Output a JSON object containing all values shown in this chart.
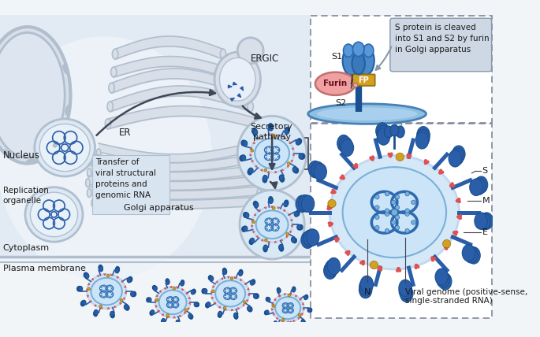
{
  "bg_color": "#f2f5f8",
  "cyto_color": "#e2eaf4",
  "white": "#ffffff",
  "blue_dark": "#1a5090",
  "blue_med": "#2e6ab0",
  "blue_spike": "#2a5ea8",
  "blue_light": "#7ab0d8",
  "blue_pale": "#b8d8f0",
  "blue_very_pale": "#cce4f8",
  "blue_cell": "#d4e8f8",
  "blue_cell2": "#c0d8f0",
  "gray_struct": "#c4ceda",
  "gray_struct2": "#b0bece",
  "gray_struct3": "#d8dfe8",
  "red_protein": "#e05050",
  "orange_protein": "#d4a020",
  "pink_furin": "#f0a0a0",
  "text_color": "#1a1a1a",
  "arrow_color": "#404858",
  "label_nucleus": "Nucleus",
  "label_ER": "ER",
  "label_ERGIC": "ERGIC",
  "label_Golgi": "Golgi apparatus",
  "label_replication": "Replication\norganelle",
  "label_transfer": "Transfer of\nviral structural\nproteins and\ngenomic RNA",
  "label_secretory": "Secretory\npathway",
  "label_cytoplasm": "Cytoplasm",
  "label_plasma": "Plasma membrane",
  "label_viral_genome": "Viral genome (positive-sense,\nsingle-stranded RNA)",
  "label_cleaved": "S protein is cleaved\ninto S1 and S2 by furin\nin Golgi apparatus",
  "label_S": "S",
  "label_M": "M",
  "label_E": "E",
  "label_N": "N",
  "label_S1": "S1",
  "label_S2": "S2",
  "label_FP": "FP",
  "label_Furin": "Furin"
}
